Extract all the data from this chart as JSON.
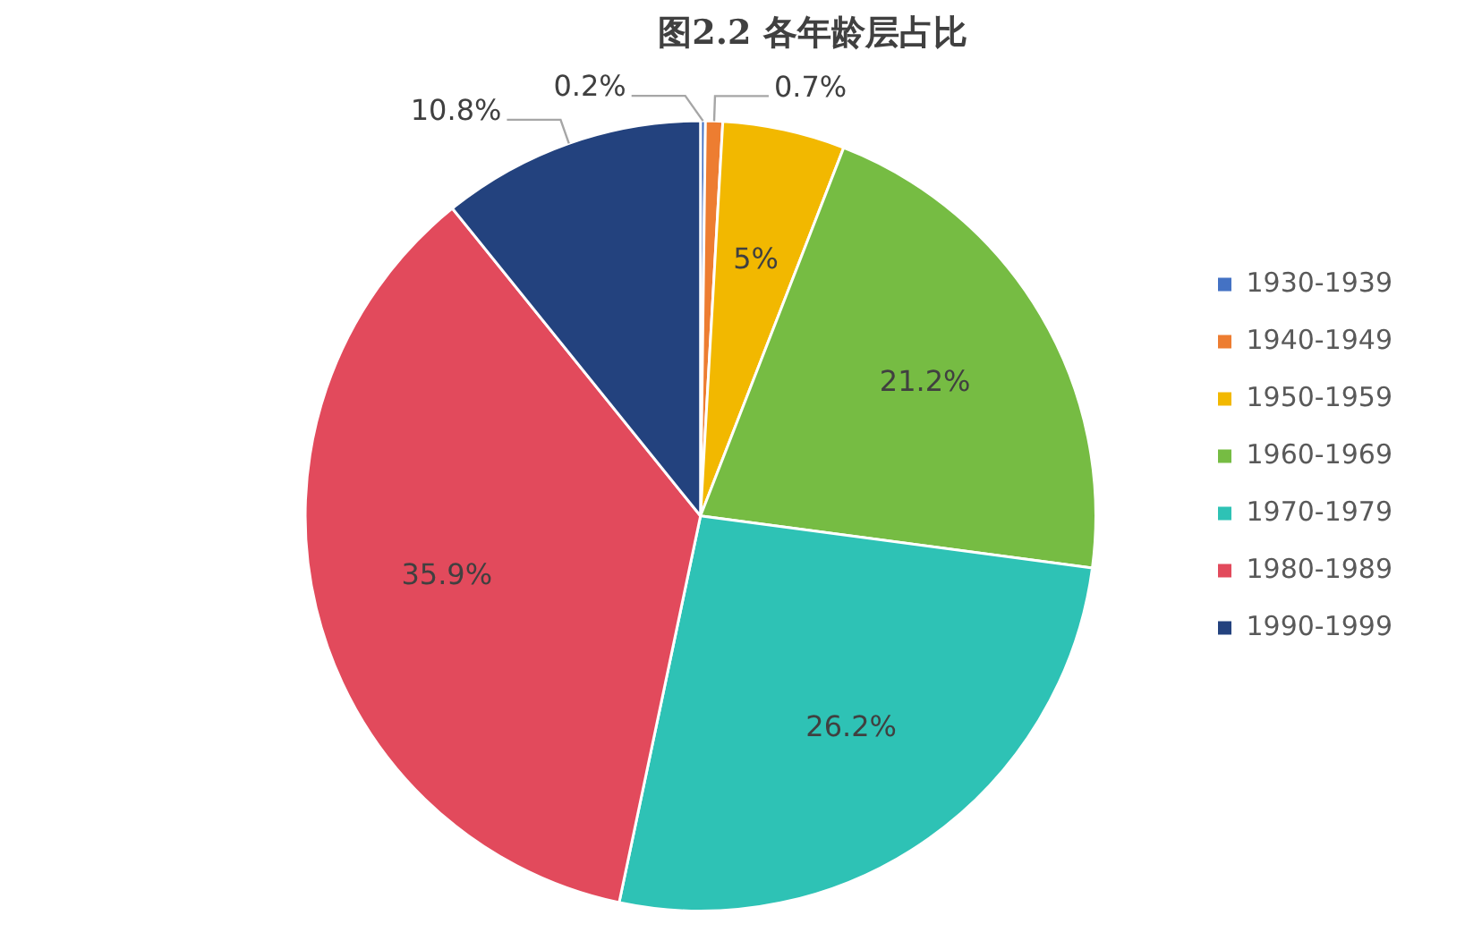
{
  "chart_data": {
    "type": "pie",
    "title": "图2.2 各年龄层占比",
    "categories": [
      "1930-1939",
      "1940-1949",
      "1950-1959",
      "1960-1969",
      "1970-1979",
      "1980-1989",
      "1990-1999"
    ],
    "values": [
      0.2,
      0.7,
      5,
      21.2,
      26.2,
      35.9,
      10.8
    ],
    "value_labels": [
      "0.2%",
      "0.7%",
      "5%",
      "21.2%",
      "26.2%",
      "35.9%",
      "10.8%"
    ],
    "colors": [
      "#4472c4",
      "#ed7d31",
      "#f2b800",
      "#76bc43",
      "#2ec2b5",
      "#e24a5c",
      "#23427e"
    ],
    "legend": "right"
  }
}
